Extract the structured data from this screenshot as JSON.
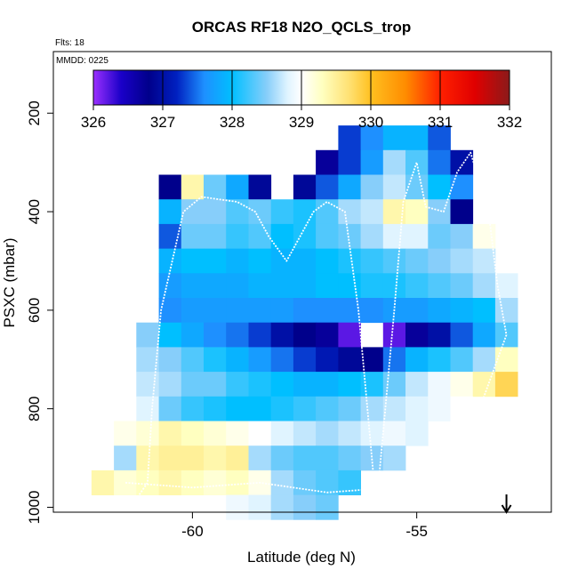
{
  "chart_data": {
    "type": "heatmap",
    "title": "ORCAS RF18 N2O_QCLS_trop",
    "flights_label": "Flts: 18",
    "date_label": "MMDD: 0225",
    "xlabel": "Latitude (deg N)",
    "ylabel": "PSXC (mbar)",
    "xlim": [
      -63.1,
      -52.0
    ],
    "ylim": [
      1010,
      75
    ],
    "y_reversed": true,
    "x_ticks": [
      -60,
      -55
    ],
    "x_tick_labels": [
      "-60",
      "-55"
    ],
    "y_ticks": [
      200,
      400,
      600,
      800,
      1000
    ],
    "y_tick_labels": [
      "200",
      "400",
      "600",
      "800",
      "1000"
    ],
    "colorbar": {
      "min": 326,
      "max": 332,
      "ticks": [
        326,
        327,
        328,
        329,
        330,
        331,
        332
      ],
      "tick_labels": [
        "326",
        "327",
        "328",
        "329",
        "330",
        "331",
        "332"
      ],
      "stops": [
        {
          "value": 326.0,
          "color": "#9B30FF"
        },
        {
          "value": 326.4,
          "color": "#1A00C8"
        },
        {
          "value": 326.8,
          "color": "#00008B"
        },
        {
          "value": 327.2,
          "color": "#0020C0"
        },
        {
          "value": 327.6,
          "color": "#1E90FF"
        },
        {
          "value": 328.0,
          "color": "#00BFFF"
        },
        {
          "value": 328.5,
          "color": "#87CEFA"
        },
        {
          "value": 328.8,
          "color": "#E0F4FF"
        },
        {
          "value": 329.0,
          "color": "#FFFFFF"
        },
        {
          "value": 329.3,
          "color": "#FFFFC0"
        },
        {
          "value": 329.7,
          "color": "#FFE070"
        },
        {
          "value": 330.0,
          "color": "#FFC020"
        },
        {
          "value": 330.5,
          "color": "#FF8C00"
        },
        {
          "value": 331.0,
          "color": "#FF2000"
        },
        {
          "value": 331.5,
          "color": "#E00000"
        },
        {
          "value": 332.0,
          "color": "#8B1A1A"
        }
      ]
    },
    "cell_width_deg": 0.5,
    "cell_height_mbar": 50,
    "cells": [
      {
        "lat": -56.5,
        "p": 250,
        "v": 327.3
      },
      {
        "lat": -56.0,
        "p": 250,
        "v": 327.6
      },
      {
        "lat": -55.5,
        "p": 250,
        "v": 327.9
      },
      {
        "lat": -55.0,
        "p": 250,
        "v": 327.9
      },
      {
        "lat": -54.5,
        "p": 250,
        "v": 327.4
      },
      {
        "lat": -57.0,
        "p": 300,
        "v": 326.7
      },
      {
        "lat": -56.5,
        "p": 300,
        "v": 327.3
      },
      {
        "lat": -56.0,
        "p": 300,
        "v": 327.7
      },
      {
        "lat": -55.5,
        "p": 300,
        "v": 328.6
      },
      {
        "lat": -55.0,
        "p": 300,
        "v": 328.3
      },
      {
        "lat": -54.5,
        "p": 300,
        "v": 327.5
      },
      {
        "lat": -54.0,
        "p": 300,
        "v": 327.0
      },
      {
        "lat": -60.5,
        "p": 350,
        "v": 326.8
      },
      {
        "lat": -60.0,
        "p": 350,
        "v": 329.4
      },
      {
        "lat": -59.5,
        "p": 350,
        "v": 328.4
      },
      {
        "lat": -59.0,
        "p": 350,
        "v": 327.8
      },
      {
        "lat": -58.5,
        "p": 350,
        "v": 326.9
      },
      {
        "lat": -57.5,
        "p": 350,
        "v": 326.9
      },
      {
        "lat": -57.0,
        "p": 350,
        "v": 327.4
      },
      {
        "lat": -56.5,
        "p": 350,
        "v": 327.8
      },
      {
        "lat": -56.0,
        "p": 350,
        "v": 328.5
      },
      {
        "lat": -55.5,
        "p": 350,
        "v": 328.7
      },
      {
        "lat": -55.0,
        "p": 350,
        "v": 328.4
      },
      {
        "lat": -54.5,
        "p": 350,
        "v": 328.0
      },
      {
        "lat": -54.0,
        "p": 350,
        "v": 327.6
      },
      {
        "lat": -60.5,
        "p": 400,
        "v": 327.9
      },
      {
        "lat": -60.0,
        "p": 400,
        "v": 328.5
      },
      {
        "lat": -59.5,
        "p": 400,
        "v": 328.5
      },
      {
        "lat": -59.0,
        "p": 400,
        "v": 328.3
      },
      {
        "lat": -58.5,
        "p": 400,
        "v": 328.4
      },
      {
        "lat": -58.0,
        "p": 400,
        "v": 328.2
      },
      {
        "lat": -57.5,
        "p": 400,
        "v": 328.1
      },
      {
        "lat": -57.0,
        "p": 400,
        "v": 328.3
      },
      {
        "lat": -56.5,
        "p": 400,
        "v": 328.6
      },
      {
        "lat": -56.0,
        "p": 400,
        "v": 328.7
      },
      {
        "lat": -55.5,
        "p": 400,
        "v": 329.4
      },
      {
        "lat": -55.0,
        "p": 400,
        "v": 329.3
      },
      {
        "lat": -54.5,
        "p": 400,
        "v": 328.5
      },
      {
        "lat": -54.0,
        "p": 400,
        "v": 326.8
      },
      {
        "lat": -60.5,
        "p": 450,
        "v": 327.4
      },
      {
        "lat": -60.0,
        "p": 450,
        "v": 328.4
      },
      {
        "lat": -59.5,
        "p": 450,
        "v": 328.4
      },
      {
        "lat": -59.0,
        "p": 450,
        "v": 328.2
      },
      {
        "lat": -58.5,
        "p": 450,
        "v": 328.3
      },
      {
        "lat": -58.0,
        "p": 450,
        "v": 328.0
      },
      {
        "lat": -57.5,
        "p": 450,
        "v": 328.1
      },
      {
        "lat": -57.0,
        "p": 450,
        "v": 328.3
      },
      {
        "lat": -56.5,
        "p": 450,
        "v": 328.4
      },
      {
        "lat": -56.0,
        "p": 450,
        "v": 328.6
      },
      {
        "lat": -55.5,
        "p": 450,
        "v": 328.8
      },
      {
        "lat": -55.0,
        "p": 450,
        "v": 328.8
      },
      {
        "lat": -54.5,
        "p": 450,
        "v": 328.4
      },
      {
        "lat": -54.0,
        "p": 450,
        "v": 328.5
      },
      {
        "lat": -53.5,
        "p": 450,
        "v": 329.1
      },
      {
        "lat": -60.5,
        "p": 500,
        "v": 327.9
      },
      {
        "lat": -60.0,
        "p": 500,
        "v": 328.0
      },
      {
        "lat": -59.5,
        "p": 500,
        "v": 328.0
      },
      {
        "lat": -59.0,
        "p": 500,
        "v": 327.9
      },
      {
        "lat": -58.5,
        "p": 500,
        "v": 328.0
      },
      {
        "lat": -58.0,
        "p": 500,
        "v": 327.9
      },
      {
        "lat": -57.5,
        "p": 500,
        "v": 327.9
      },
      {
        "lat": -57.0,
        "p": 500,
        "v": 328.0
      },
      {
        "lat": -56.5,
        "p": 500,
        "v": 328.1
      },
      {
        "lat": -56.0,
        "p": 500,
        "v": 328.2
      },
      {
        "lat": -55.5,
        "p": 500,
        "v": 328.3
      },
      {
        "lat": -55.0,
        "p": 500,
        "v": 328.4
      },
      {
        "lat": -54.5,
        "p": 500,
        "v": 328.5
      },
      {
        "lat": -54.0,
        "p": 500,
        "v": 328.6
      },
      {
        "lat": -53.5,
        "p": 500,
        "v": 328.7
      },
      {
        "lat": -60.5,
        "p": 550,
        "v": 327.7
      },
      {
        "lat": -60.0,
        "p": 550,
        "v": 327.8
      },
      {
        "lat": -59.5,
        "p": 550,
        "v": 327.8
      },
      {
        "lat": -59.0,
        "p": 550,
        "v": 327.8
      },
      {
        "lat": -58.5,
        "p": 550,
        "v": 327.9
      },
      {
        "lat": -58.0,
        "p": 550,
        "v": 327.9
      },
      {
        "lat": -57.5,
        "p": 550,
        "v": 327.9
      },
      {
        "lat": -57.0,
        "p": 550,
        "v": 328.0
      },
      {
        "lat": -56.5,
        "p": 550,
        "v": 328.0
      },
      {
        "lat": -56.0,
        "p": 550,
        "v": 328.1
      },
      {
        "lat": -55.5,
        "p": 550,
        "v": 328.1
      },
      {
        "lat": -55.0,
        "p": 550,
        "v": 328.2
      },
      {
        "lat": -54.5,
        "p": 550,
        "v": 328.3
      },
      {
        "lat": -54.0,
        "p": 550,
        "v": 328.4
      },
      {
        "lat": -53.5,
        "p": 550,
        "v": 328.6
      },
      {
        "lat": -53.0,
        "p": 550,
        "v": 328.8
      },
      {
        "lat": -60.5,
        "p": 600,
        "v": 327.6
      },
      {
        "lat": -60.0,
        "p": 600,
        "v": 327.7
      },
      {
        "lat": -59.5,
        "p": 600,
        "v": 327.7
      },
      {
        "lat": -59.0,
        "p": 600,
        "v": 327.7
      },
      {
        "lat": -58.5,
        "p": 600,
        "v": 327.7
      },
      {
        "lat": -58.0,
        "p": 600,
        "v": 327.7
      },
      {
        "lat": -57.5,
        "p": 600,
        "v": 327.6
      },
      {
        "lat": -57.0,
        "p": 600,
        "v": 327.6
      },
      {
        "lat": -56.5,
        "p": 600,
        "v": 327.6
      },
      {
        "lat": -56.0,
        "p": 600,
        "v": 327.6
      },
      {
        "lat": -55.5,
        "p": 600,
        "v": 327.7
      },
      {
        "lat": -55.0,
        "p": 600,
        "v": 327.7
      },
      {
        "lat": -54.5,
        "p": 600,
        "v": 327.8
      },
      {
        "lat": -54.0,
        "p": 600,
        "v": 327.9
      },
      {
        "lat": -53.5,
        "p": 600,
        "v": 328.0
      },
      {
        "lat": -53.0,
        "p": 600,
        "v": 328.6
      },
      {
        "lat": -61.0,
        "p": 650,
        "v": 328.5
      },
      {
        "lat": -60.5,
        "p": 650,
        "v": 328.0
      },
      {
        "lat": -60.0,
        "p": 650,
        "v": 327.8
      },
      {
        "lat": -59.5,
        "p": 650,
        "v": 327.6
      },
      {
        "lat": -59.0,
        "p": 650,
        "v": 327.5
      },
      {
        "lat": -58.5,
        "p": 650,
        "v": 327.3
      },
      {
        "lat": -58.0,
        "p": 650,
        "v": 327.0
      },
      {
        "lat": -57.5,
        "p": 650,
        "v": 326.8
      },
      {
        "lat": -57.0,
        "p": 650,
        "v": 326.7
      },
      {
        "lat": -56.5,
        "p": 650,
        "v": 326.2
      },
      {
        "lat": -55.5,
        "p": 650,
        "v": 326.2
      },
      {
        "lat": -55.0,
        "p": 650,
        "v": 326.7
      },
      {
        "lat": -54.5,
        "p": 650,
        "v": 327.0
      },
      {
        "lat": -54.0,
        "p": 650,
        "v": 327.4
      },
      {
        "lat": -53.5,
        "p": 650,
        "v": 327.8
      },
      {
        "lat": -53.0,
        "p": 650,
        "v": 328.3
      },
      {
        "lat": -61.0,
        "p": 700,
        "v": 328.6
      },
      {
        "lat": -60.5,
        "p": 700,
        "v": 328.5
      },
      {
        "lat": -60.0,
        "p": 700,
        "v": 328.3
      },
      {
        "lat": -59.5,
        "p": 700,
        "v": 328.1
      },
      {
        "lat": -59.0,
        "p": 700,
        "v": 327.9
      },
      {
        "lat": -58.5,
        "p": 700,
        "v": 327.7
      },
      {
        "lat": -58.0,
        "p": 700,
        "v": 327.5
      },
      {
        "lat": -57.5,
        "p": 700,
        "v": 327.3
      },
      {
        "lat": -57.0,
        "p": 700,
        "v": 327.1
      },
      {
        "lat": -56.5,
        "p": 700,
        "v": 326.9
      },
      {
        "lat": -56.0,
        "p": 700,
        "v": 326.8
      },
      {
        "lat": -55.5,
        "p": 700,
        "v": 327.5
      },
      {
        "lat": -55.0,
        "p": 700,
        "v": 327.9
      },
      {
        "lat": -54.5,
        "p": 700,
        "v": 328.1
      },
      {
        "lat": -54.0,
        "p": 700,
        "v": 328.3
      },
      {
        "lat": -53.5,
        "p": 700,
        "v": 328.6
      },
      {
        "lat": -53.0,
        "p": 700,
        "v": 329.3
      },
      {
        "lat": -61.0,
        "p": 750,
        "v": 328.7
      },
      {
        "lat": -60.5,
        "p": 750,
        "v": 328.6
      },
      {
        "lat": -60.0,
        "p": 750,
        "v": 328.4
      },
      {
        "lat": -59.5,
        "p": 750,
        "v": 328.4
      },
      {
        "lat": -59.0,
        "p": 750,
        "v": 328.2
      },
      {
        "lat": -58.5,
        "p": 750,
        "v": 328.1
      },
      {
        "lat": -58.0,
        "p": 750,
        "v": 328.0
      },
      {
        "lat": -57.5,
        "p": 750,
        "v": 327.9
      },
      {
        "lat": -57.0,
        "p": 750,
        "v": 327.9
      },
      {
        "lat": -56.5,
        "p": 750,
        "v": 328.0
      },
      {
        "lat": -56.0,
        "p": 750,
        "v": 328.1
      },
      {
        "lat": -55.5,
        "p": 750,
        "v": 328.4
      },
      {
        "lat": -55.0,
        "p": 750,
        "v": 328.7
      },
      {
        "lat": -54.5,
        "p": 750,
        "v": 328.9
      },
      {
        "lat": -54.0,
        "p": 750,
        "v": 329.1
      },
      {
        "lat": -53.5,
        "p": 750,
        "v": 329.4
      },
      {
        "lat": -53.0,
        "p": 750,
        "v": 329.8
      },
      {
        "lat": -61.0,
        "p": 800,
        "v": 328.8
      },
      {
        "lat": -60.5,
        "p": 800,
        "v": 328.4
      },
      {
        "lat": -60.0,
        "p": 800,
        "v": 328.2
      },
      {
        "lat": -59.5,
        "p": 800,
        "v": 328.1
      },
      {
        "lat": -59.0,
        "p": 800,
        "v": 328.0
      },
      {
        "lat": -58.5,
        "p": 800,
        "v": 328.0
      },
      {
        "lat": -58.0,
        "p": 800,
        "v": 328.1
      },
      {
        "lat": -57.5,
        "p": 800,
        "v": 328.2
      },
      {
        "lat": -57.0,
        "p": 800,
        "v": 328.3
      },
      {
        "lat": -56.5,
        "p": 800,
        "v": 328.4
      },
      {
        "lat": -56.0,
        "p": 800,
        "v": 328.6
      },
      {
        "lat": -55.5,
        "p": 800,
        "v": 328.7
      },
      {
        "lat": -55.0,
        "p": 800,
        "v": 328.8
      },
      {
        "lat": -54.5,
        "p": 800,
        "v": 328.9
      },
      {
        "lat": -54.0,
        "p": 800,
        "v": 329.0
      },
      {
        "lat": -61.5,
        "p": 850,
        "v": 329.1
      },
      {
        "lat": -61.0,
        "p": 850,
        "v": 329.2
      },
      {
        "lat": -60.5,
        "p": 850,
        "v": 329.4
      },
      {
        "lat": -60.0,
        "p": 850,
        "v": 329.3
      },
      {
        "lat": -59.5,
        "p": 850,
        "v": 329.2
      },
      {
        "lat": -59.0,
        "p": 850,
        "v": 329.1
      },
      {
        "lat": -58.5,
        "p": 850,
        "v": 329.0
      },
      {
        "lat": -58.0,
        "p": 850,
        "v": 328.8
      },
      {
        "lat": -57.5,
        "p": 850,
        "v": 328.7
      },
      {
        "lat": -57.0,
        "p": 850,
        "v": 328.6
      },
      {
        "lat": -56.5,
        "p": 850,
        "v": 328.7
      },
      {
        "lat": -56.0,
        "p": 850,
        "v": 328.8
      },
      {
        "lat": -55.5,
        "p": 850,
        "v": 328.9
      },
      {
        "lat": -55.0,
        "p": 850,
        "v": 328.8
      },
      {
        "lat": -61.5,
        "p": 900,
        "v": 328.6
      },
      {
        "lat": -61.0,
        "p": 900,
        "v": 329.4
      },
      {
        "lat": -60.5,
        "p": 900,
        "v": 329.5
      },
      {
        "lat": -60.0,
        "p": 900,
        "v": 329.5
      },
      {
        "lat": -59.5,
        "p": 900,
        "v": 329.4
      },
      {
        "lat": -59.0,
        "p": 900,
        "v": 329.5
      },
      {
        "lat": -58.5,
        "p": 900,
        "v": 328.6
      },
      {
        "lat": -58.0,
        "p": 900,
        "v": 328.4
      },
      {
        "lat": -57.5,
        "p": 900,
        "v": 328.3
      },
      {
        "lat": -57.0,
        "p": 900,
        "v": 328.3
      },
      {
        "lat": -56.5,
        "p": 900,
        "v": 328.4
      },
      {
        "lat": -56.0,
        "p": 900,
        "v": 328.5
      },
      {
        "lat": -55.5,
        "p": 900,
        "v": 328.6
      },
      {
        "lat": -62.0,
        "p": 950,
        "v": 329.4
      },
      {
        "lat": -61.5,
        "p": 950,
        "v": 329.2
      },
      {
        "lat": -61.0,
        "p": 950,
        "v": 329.3
      },
      {
        "lat": -60.5,
        "p": 950,
        "v": 329.4
      },
      {
        "lat": -60.0,
        "p": 950,
        "v": 329.3
      },
      {
        "lat": -59.5,
        "p": 950,
        "v": 329.2
      },
      {
        "lat": -59.0,
        "p": 950,
        "v": 329.3
      },
      {
        "lat": -58.5,
        "p": 950,
        "v": 329.1
      },
      {
        "lat": -58.0,
        "p": 950,
        "v": 328.6
      },
      {
        "lat": -57.5,
        "p": 950,
        "v": 328.4
      },
      {
        "lat": -57.0,
        "p": 950,
        "v": 328.3
      },
      {
        "lat": -56.5,
        "p": 950,
        "v": 328.2
      },
      {
        "lat": -59.0,
        "p": 1000,
        "v": 328.9
      },
      {
        "lat": -58.5,
        "p": 1000,
        "v": 328.8
      },
      {
        "lat": -58.0,
        "p": 1000,
        "v": 328.6
      },
      {
        "lat": -57.5,
        "p": 1000,
        "v": 328.5
      },
      {
        "lat": -57.0,
        "p": 1000,
        "v": 328.4
      }
    ],
    "flight_track": [
      [
        -61.3,
        990
      ],
      [
        -61.0,
        950
      ],
      [
        -60.9,
        800
      ],
      [
        -60.7,
        600
      ],
      [
        -60.2,
        400
      ],
      [
        -59.8,
        370
      ],
      [
        -59.0,
        380
      ],
      [
        -58.6,
        400
      ],
      [
        -58.3,
        450
      ],
      [
        -57.9,
        500
      ],
      [
        -57.6,
        450
      ],
      [
        -57.3,
        400
      ],
      [
        -57.0,
        380
      ],
      [
        -56.6,
        400
      ],
      [
        -56.3,
        600
      ],
      [
        -56.1,
        800
      ],
      [
        -55.9,
        1000
      ],
      [
        -55.7,
        800
      ],
      [
        -55.5,
        600
      ],
      [
        -55.3,
        380
      ],
      [
        -55.0,
        300
      ],
      [
        -54.8,
        390
      ],
      [
        -54.4,
        400
      ],
      [
        -54.1,
        320
      ],
      [
        -53.8,
        280
      ],
      [
        -53.4,
        400
      ],
      [
        -53.2,
        550
      ],
      [
        -53.0,
        650
      ],
      [
        -53.6,
        800
      ],
      [
        -54.3,
        900
      ],
      [
        -55.5,
        960
      ],
      [
        -57.0,
        970
      ],
      [
        -58.5,
        950
      ],
      [
        -60.0,
        960
      ],
      [
        -61.5,
        950
      ]
    ],
    "arrow_marker": {
      "lat": -53.0,
      "direction": "down"
    }
  }
}
